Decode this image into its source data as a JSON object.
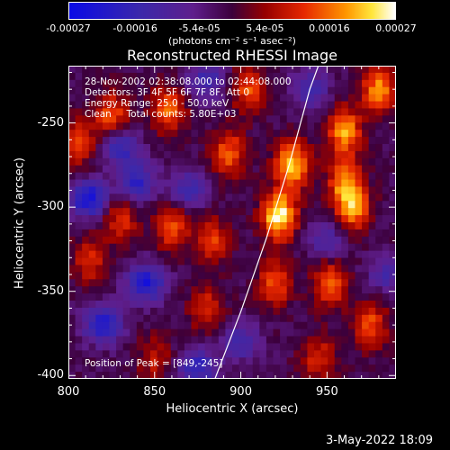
{
  "chart_data": {
    "type": "heatmap",
    "title": "Reconstructed RHESSI Image",
    "xlabel": "Heliocentric X (arcsec)",
    "ylabel": "Heliocentric Y (arcsec)",
    "xlim": [
      800,
      990
    ],
    "ylim": [
      -402,
      -216
    ],
    "x_ticks": [
      "800",
      "850",
      "900",
      "950"
    ],
    "y_ticks": [
      "-250",
      "-300",
      "-350",
      "-400"
    ],
    "x_tick_values": [
      800,
      850,
      900,
      950
    ],
    "y_tick_values": [
      -250,
      -300,
      -350,
      -400
    ],
    "colorbar": {
      "min": -0.00027,
      "max": 0.00027,
      "tick_labels": [
        "-0.00027",
        "-0.00016",
        "-5.4e-05",
        "5.4e-05",
        "0.00016",
        "0.00027"
      ],
      "tick_values": [
        -0.00027,
        -0.00016,
        -5.4e-05,
        5.4e-05,
        0.00016,
        0.00027
      ],
      "unit_label": "(photons cm⁻² s⁻¹ asec⁻²)"
    },
    "annotations": [
      "28-Nov-2002 02:38:08.000 to 02:44:08.000",
      "Detectors: 3F 4F 5F 6F 7F 8F, Att 0",
      "Energy Range: 25.0 - 50.0 keV",
      "Clean     Total counts: 5.80E+03"
    ],
    "peak_text": "Position of Peak = [849,-245]",
    "peak": [
      849,
      -245
    ],
    "limb_curve": [
      [
        885,
        -402
      ],
      [
        900,
        -362
      ],
      [
        915,
        -318
      ],
      [
        928,
        -275
      ],
      [
        940,
        -230
      ],
      [
        945,
        -216
      ]
    ],
    "hot_spots": [
      {
        "x": 922,
        "y": -305,
        "w": 1.0
      },
      {
        "x": 930,
        "y": -275,
        "w": 0.85
      },
      {
        "x": 960,
        "y": -255,
        "w": 0.75
      },
      {
        "x": 965,
        "y": -300,
        "w": 0.7
      },
      {
        "x": 980,
        "y": -230,
        "w": 0.7
      },
      {
        "x": 858,
        "y": -242,
        "w": 0.6
      },
      {
        "x": 825,
        "y": -245,
        "w": 0.55
      },
      {
        "x": 805,
        "y": -262,
        "w": 0.55
      },
      {
        "x": 893,
        "y": -268,
        "w": 0.6
      },
      {
        "x": 905,
        "y": -230,
        "w": 0.55
      },
      {
        "x": 860,
        "y": -312,
        "w": 0.55
      },
      {
        "x": 830,
        "y": -308,
        "w": 0.45
      },
      {
        "x": 883,
        "y": -320,
        "w": 0.5
      },
      {
        "x": 880,
        "y": -360,
        "w": 0.45
      },
      {
        "x": 920,
        "y": -345,
        "w": 0.55
      },
      {
        "x": 952,
        "y": -345,
        "w": 0.6
      },
      {
        "x": 975,
        "y": -370,
        "w": 0.55
      },
      {
        "x": 945,
        "y": -390,
        "w": 0.45
      },
      {
        "x": 960,
        "y": -285,
        "w": 0.6
      },
      {
        "x": 812,
        "y": -332,
        "w": 0.45
      },
      {
        "x": 850,
        "y": -390,
        "w": 0.35
      }
    ],
    "cold_spots": [
      {
        "x": 812,
        "y": -295,
        "w": 0.8
      },
      {
        "x": 840,
        "y": -285,
        "w": 0.6
      },
      {
        "x": 845,
        "y": -345,
        "w": 0.75
      },
      {
        "x": 820,
        "y": -370,
        "w": 0.7
      },
      {
        "x": 875,
        "y": -395,
        "w": 0.6
      },
      {
        "x": 900,
        "y": -380,
        "w": 0.45
      },
      {
        "x": 830,
        "y": -265,
        "w": 0.55
      },
      {
        "x": 880,
        "y": -225,
        "w": 0.5
      },
      {
        "x": 870,
        "y": -290,
        "w": 0.5
      },
      {
        "x": 940,
        "y": -230,
        "w": 0.45
      },
      {
        "x": 950,
        "y": -320,
        "w": 0.4
      },
      {
        "x": 985,
        "y": -340,
        "w": 0.4
      }
    ]
  },
  "footer": {
    "timestamp": "3-May-2022 18:09"
  }
}
